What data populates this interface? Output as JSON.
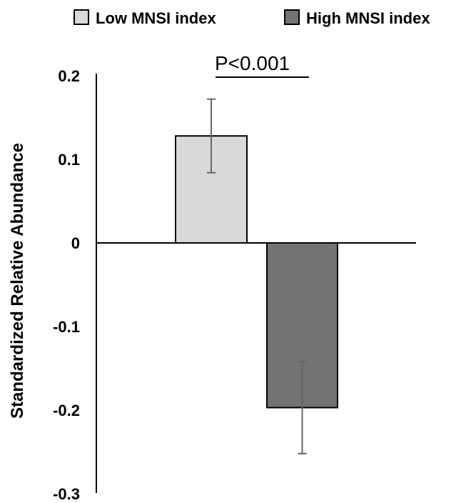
{
  "chart_data": {
    "type": "bar",
    "categories": [
      "Low MNSI index",
      "High MNSI index"
    ],
    "values": [
      0.128,
      -0.197
    ],
    "error_bars": [
      {
        "low": 0.084,
        "high": 0.172
      },
      {
        "low": -0.252,
        "high": -0.142
      }
    ],
    "ylabel": "Standardized Relative Abundance",
    "ylim": [
      -0.3,
      0.2
    ],
    "yticks": [
      "0.2",
      "0.1",
      "0",
      "-0.1",
      "-0.2",
      "-0.3"
    ],
    "ytick_values": [
      0.2,
      0.1,
      0,
      -0.1,
      -0.2,
      -0.3
    ],
    "legend": [
      "Low MNSI index",
      "High MNSI index"
    ],
    "legend_position": "top",
    "annotation": "P<0.001",
    "grid": false,
    "colors": [
      "#d9d9d9",
      "#737373"
    ]
  }
}
